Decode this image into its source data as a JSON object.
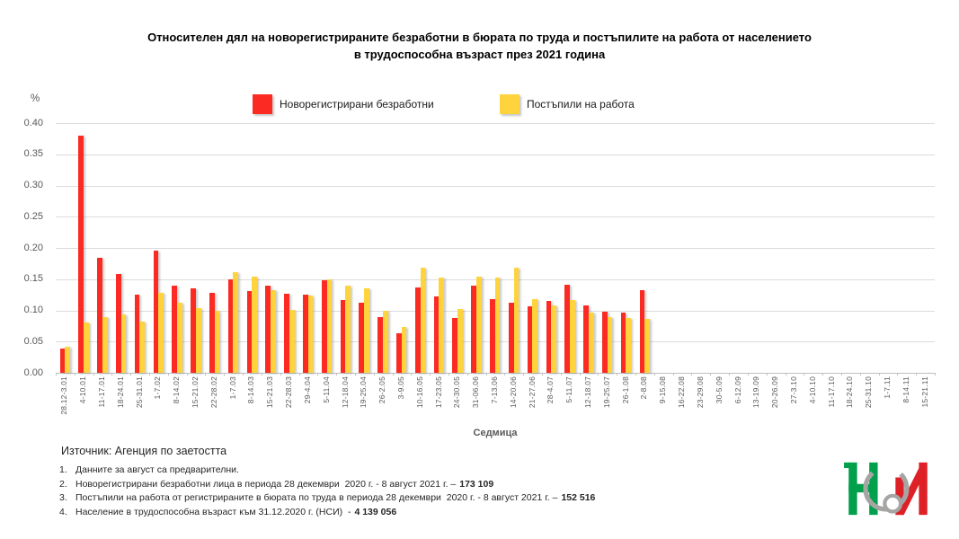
{
  "title": {
    "line1": "Относителен дял на новорегистрираните безработни в бюрата по труда и постъпилите на работа от населението",
    "line2": "в трудоспособна възраст през 2021 година"
  },
  "chart_data": {
    "type": "bar",
    "title": "Относителен дял на новорегистрираните безработни в бюрата по труда и постъпилите на работа от населението в трудоспособна възраст през 2021 година",
    "xlabel": "Седмица",
    "ylabel": "%",
    "ylim": [
      0,
      0.4
    ],
    "ytick_step": 0.05,
    "yticks": [
      "0.40",
      "0.35",
      "0.30",
      "0.25",
      "0.20",
      "0.15",
      "0.10",
      "0.05",
      "0.00"
    ],
    "grid": true,
    "legend_position": "top",
    "categories": [
      "28.12-3.01",
      "4-10.01",
      "11-17.01",
      "18-24.01",
      "25-31.01",
      "1-7.02",
      "8-14.02",
      "15-21.02",
      "22-28.02",
      "1-7.03",
      "8-14.03",
      "15-21.03",
      "22-28.03",
      "29-4.04",
      "5-11.04",
      "12-18.04",
      "19-25.04",
      "26-2.05",
      "3-9.05",
      "10-16.05",
      "17-23.05",
      "24-30.05",
      "31-06.06",
      "7-13.06",
      "14-20.06",
      "21-27.06",
      "28-4.07",
      "5-11.07",
      "12-18.07",
      "19-25.07",
      "26-1.08",
      "2-8.08",
      "9-15.08",
      "16-22.08",
      "23-29.08",
      "30-5.09",
      "6-12.09",
      "13-19.09",
      "20-26.09",
      "27-3.10",
      "4-10.10",
      "11-17.10",
      "18-24.10",
      "25-31.10",
      "1-7.11",
      "8-14.11",
      "15-21.11"
    ],
    "series": [
      {
        "name": "Новорегистрирани безработни",
        "color": "#FB2B23",
        "values": [
          0.039,
          0.38,
          0.184,
          0.158,
          0.125,
          0.196,
          0.139,
          0.135,
          0.128,
          0.15,
          0.131,
          0.139,
          0.126,
          0.125,
          0.148,
          0.116,
          0.113,
          0.09,
          0.063,
          0.137,
          0.122,
          0.088,
          0.14,
          0.118,
          0.112,
          0.106,
          0.115,
          0.141,
          0.108,
          0.098,
          0.096,
          0.133,
          null,
          null,
          null,
          null,
          null,
          null,
          null,
          null,
          null,
          null,
          null,
          null,
          null,
          null,
          null
        ]
      },
      {
        "name": "Постъпили на работа",
        "color": "#FFD33C",
        "values": [
          0.042,
          0.08,
          0.09,
          0.093,
          0.082,
          0.128,
          0.112,
          0.103,
          0.099,
          0.161,
          0.154,
          0.132,
          0.101,
          0.124,
          0.15,
          0.139,
          0.135,
          0.099,
          0.074,
          0.168,
          0.153,
          0.102,
          0.154,
          0.153,
          0.168,
          0.118,
          0.108,
          0.117,
          0.096,
          0.09,
          0.088,
          0.087,
          null,
          null,
          null,
          null,
          null,
          null,
          null,
          null,
          null,
          null,
          null,
          null,
          null,
          null,
          null
        ]
      }
    ]
  },
  "footer": {
    "source": "Източник: Агенция по заетостта",
    "notes": [
      {
        "num": "1.",
        "text": "Данните за август са предварителни.",
        "bold": ""
      },
      {
        "num": "2.",
        "text": "Новорегистрирани безработни лица в периода 28 декември  2020 г. - 8 август 2021 г. –",
        "bold": "173 109"
      },
      {
        "num": "3.",
        "text": "Постъпили на работа от регистрираните в бюрата по труда в периода 28 декември  2020 г. - 8 август 2021 г. –",
        "bold": "152 516"
      },
      {
        "num": "4.",
        "text": "Население в трудоспособна възраст към 31.12.2020 г. (НСИ)  -",
        "bold": "4 139 056"
      }
    ]
  },
  "logo": {
    "name": "НСИ",
    "green": "#00A04C",
    "red": "#DE2126",
    "gray": "#A5A5A4"
  }
}
